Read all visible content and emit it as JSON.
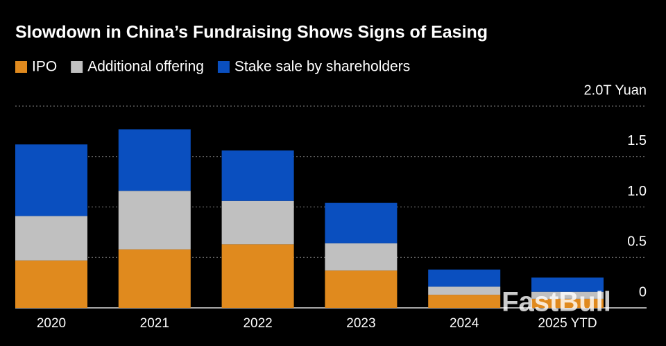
{
  "chart_data": {
    "type": "stacked_bar",
    "title": "Slowdown in China’s Fundraising Shows Signs of Easing",
    "categories": [
      "2020",
      "2021",
      "2022",
      "2023",
      "2024",
      "2025 YTD"
    ],
    "series": [
      {
        "name": "IPO",
        "color": "#e08a1e",
        "values": [
          0.47,
          0.58,
          0.63,
          0.37,
          0.13,
          0.09
        ]
      },
      {
        "name": "Additional offering",
        "color": "#c0c0c0",
        "values": [
          0.44,
          0.58,
          0.43,
          0.27,
          0.08,
          0.07
        ]
      },
      {
        "name": "Stake sale by shareholders",
        "color": "#0a4fbf",
        "values": [
          0.71,
          0.61,
          0.5,
          0.4,
          0.17,
          0.14
        ]
      }
    ],
    "ylim": [
      0,
      2
    ],
    "yticks": [
      0,
      0.5,
      {
        "value": 1,
        "label": "1.0"
      },
      1.5,
      {
        "value": 2,
        "label": "2.0T Yuan"
      }
    ],
    "grid": true,
    "watermark": "FastBull"
  }
}
